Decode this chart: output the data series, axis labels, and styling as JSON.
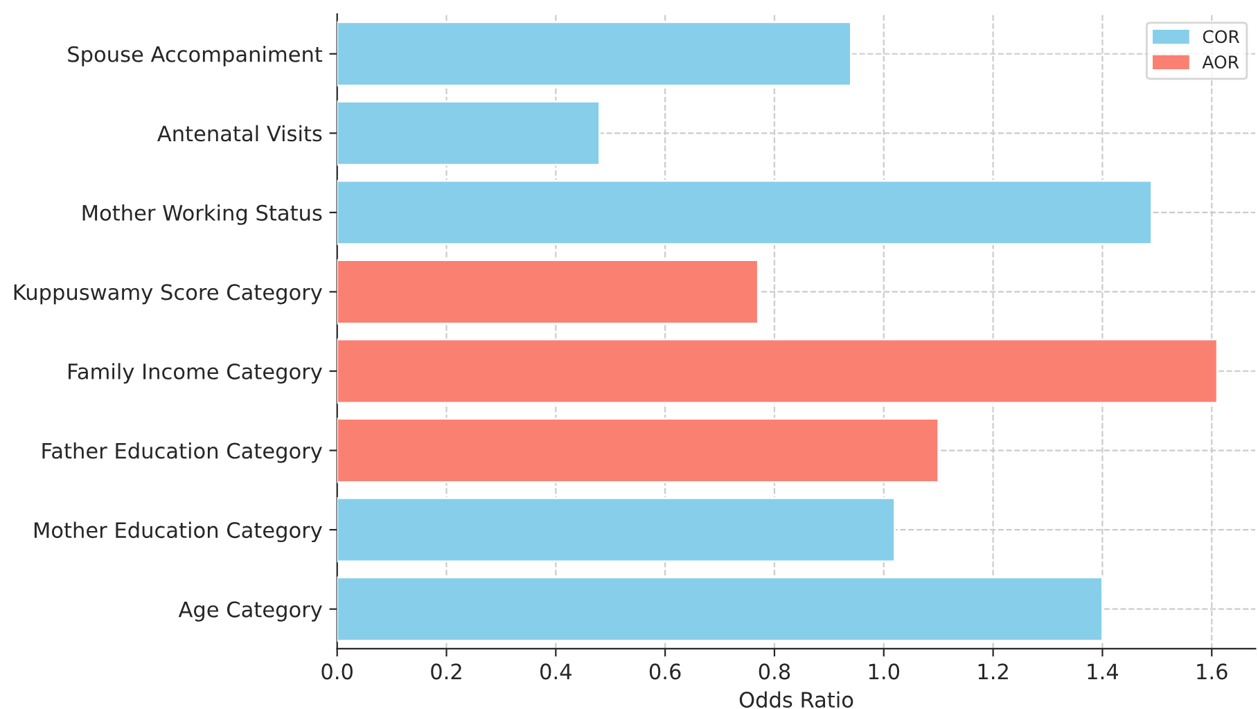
{
  "chart_data": {
    "type": "bar",
    "orientation": "horizontal",
    "xlabel": "Odds Ratio",
    "categories": [
      "Spouse Accompaniment",
      "Antenatal Visits",
      "Mother Working Status",
      "Kuppuswamy Score Category",
      "Family Income Category",
      "Father Education Category",
      "Mother Education Category",
      "Age Category"
    ],
    "series": [
      {
        "name": "COR",
        "color": "#87ceeb",
        "values": [
          0.94,
          0.48,
          1.49,
          null,
          null,
          null,
          1.02,
          1.4
        ]
      },
      {
        "name": "AOR",
        "color": "#fa8072",
        "values": [
          null,
          null,
          null,
          0.77,
          1.61,
          1.1,
          null,
          null
        ]
      }
    ],
    "xlim": [
      0,
      1.68
    ],
    "xticks": [
      {
        "value": 0,
        "label": "0.0"
      },
      {
        "value": 0.2,
        "label": "0.2"
      },
      {
        "value": 0.4,
        "label": "0.4"
      },
      {
        "value": 0.6,
        "label": "0.6"
      },
      {
        "value": 0.8,
        "label": "0.8"
      },
      {
        "value": 1.0,
        "label": "1.0"
      },
      {
        "value": 1.2,
        "label": "1.2"
      },
      {
        "value": 1.4,
        "label": "1.4"
      },
      {
        "value": 1.6,
        "label": "1.6"
      }
    ],
    "grid": true,
    "legend": "top right"
  }
}
